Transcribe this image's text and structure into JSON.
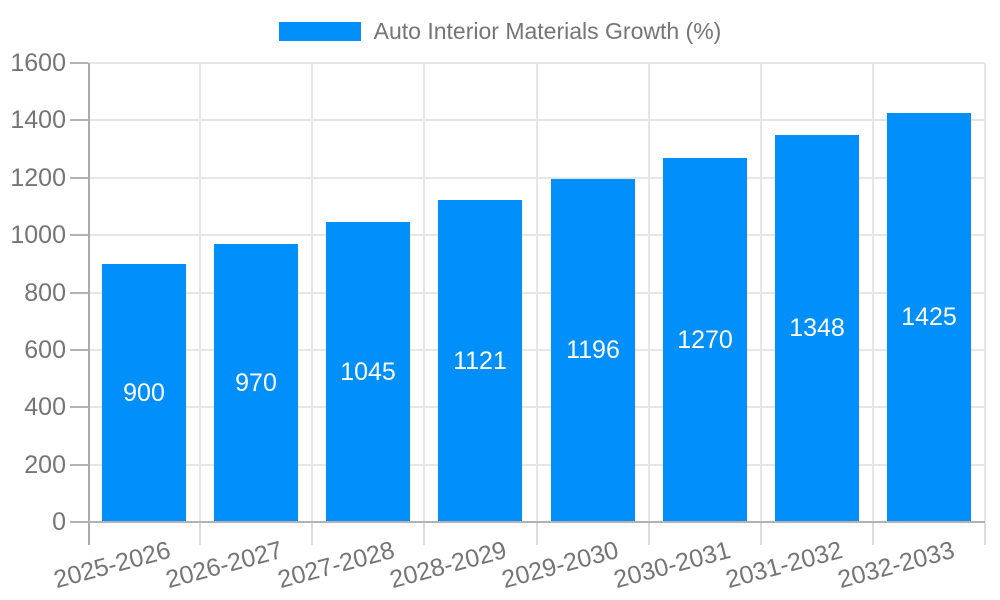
{
  "chart_data": {
    "type": "bar",
    "title": "Auto Interior Materials Growth (%)",
    "legend": {
      "label": "Auto Interior Materials Growth (%)",
      "position": "top"
    },
    "categories": [
      "2025-2026",
      "2026-2027",
      "2027-2028",
      "2028-2029",
      "2029-2030",
      "2030-2031",
      "2031-2032",
      "2032-2033"
    ],
    "values": [
      900,
      970,
      1045,
      1121,
      1196,
      1270,
      1348,
      1425
    ],
    "xlabel": "",
    "ylabel": "",
    "ylim": [
      0,
      1600
    ],
    "yticks": [
      0,
      200,
      400,
      600,
      800,
      1000,
      1200,
      1400,
      1600
    ],
    "grid": true,
    "x_label_rotation_deg": -15,
    "colors": {
      "bar": "#008FFB",
      "grid": "#e6e6e6",
      "axis": "#b2b2b2",
      "tick_label": "#757575",
      "value_label": "#ffffff",
      "background": "#ffffff"
    }
  }
}
